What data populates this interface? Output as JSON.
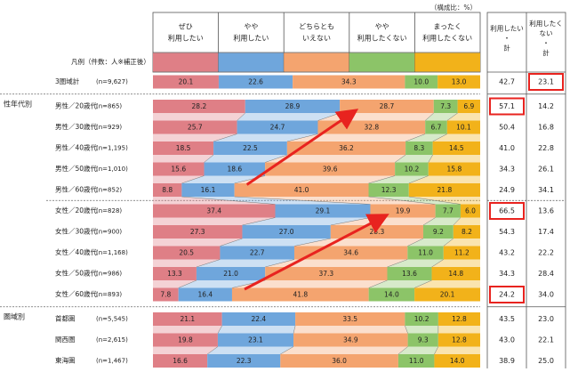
{
  "chart_data": {
    "type": "bar",
    "subtype": "stacked-100-percent-horizontal",
    "unit_note": "（構成比：%）",
    "legend_label": "凡例（件数：人※補正後）",
    "series": [
      {
        "name": "ぜひ\n利用したい",
        "color": "#df7f86"
      },
      {
        "name": "やや\n利用したい",
        "color": "#6fa6dc"
      },
      {
        "name": "どちらとも\nいえない",
        "color": "#f4a46f"
      },
      {
        "name": "やや\n利用したくない",
        "color": "#8cc468"
      },
      {
        "name": "まったく\n利用したくない",
        "color": "#f2b21a"
      }
    ],
    "side_columns": [
      {
        "name": "利用したい\n・\n計"
      },
      {
        "name": "利用したく\nない\n・\n計"
      }
    ],
    "groups": [
      {
        "name": "",
        "rows": [
          {
            "label": "3圏域計",
            "n": "(n=9,627)",
            "values": [
              20.1,
              22.6,
              34.3,
              10.0,
              13.0
            ],
            "labels": [
              "20.1",
              "22.6",
              "34.3",
              "10.0",
              "13.0"
            ],
            "want": "42.7",
            "notwant": "23.1",
            "hl_want": false,
            "hl_notwant": true
          }
        ]
      },
      {
        "name": "性年代別",
        "rows": [
          {
            "label": "男性／20歳代",
            "n": "(n=865)",
            "values": [
              28.2,
              28.9,
              28.7,
              7.3,
              6.9
            ],
            "labels": [
              "28.2",
              "28.9",
              "28.7",
              "7.3",
              "6.9"
            ],
            "want": "57.1",
            "notwant": "14.2",
            "hl_want": true,
            "hl_notwant": false
          },
          {
            "label": "男性／30歳代",
            "n": "(n=929)",
            "values": [
              25.7,
              24.7,
              32.8,
              6.7,
              10.1
            ],
            "labels": [
              "25.7",
              "24.7",
              "32.8",
              "6.7",
              "10.1"
            ],
            "want": "50.4",
            "notwant": "16.8",
            "hl_want": false,
            "hl_notwant": false
          },
          {
            "label": "男性／40歳代",
            "n": "(n=1,195)",
            "values": [
              18.5,
              22.5,
              36.2,
              8.3,
              14.5
            ],
            "labels": [
              "18.5",
              "22.5",
              "36.2",
              "8.3",
              "14.5"
            ],
            "want": "41.0",
            "notwant": "22.8",
            "hl_want": false,
            "hl_notwant": false
          },
          {
            "label": "男性／50歳代",
            "n": "(n=1,010)",
            "values": [
              15.6,
              18.6,
              39.6,
              10.2,
              15.8
            ],
            "labels": [
              "15.6",
              "18.6",
              "39.6",
              "10.2",
              "15.8"
            ],
            "want": "34.3",
            "notwant": "26.1",
            "hl_want": false,
            "hl_notwant": false
          },
          {
            "label": "男性／60歳代",
            "n": "(n=852)",
            "values": [
              8.8,
              16.1,
              41.0,
              12.3,
              21.8
            ],
            "labels": [
              "8.8",
              "16.1",
              "41.0",
              "12.3",
              "21.8"
            ],
            "want": "24.9",
            "notwant": "34.1",
            "hl_want": false,
            "hl_notwant": false
          },
          {
            "label": "女性／20歳代",
            "n": "(n=828)",
            "values": [
              37.4,
              29.1,
              19.9,
              7.7,
              6.0
            ],
            "labels": [
              "37.4",
              "29.1",
              "19.9",
              "7.7",
              "6.0"
            ],
            "want": "66.5",
            "notwant": "13.6",
            "hl_want": true,
            "hl_notwant": false
          },
          {
            "label": "女性／30歳代",
            "n": "(n=900)",
            "values": [
              27.3,
              27.0,
              28.3,
              9.2,
              8.2
            ],
            "labels": [
              "27.3",
              "27.0",
              "28.3",
              "9.2",
              "8.2"
            ],
            "want": "54.3",
            "notwant": "17.4",
            "hl_want": false,
            "hl_notwant": false
          },
          {
            "label": "女性／40歳代",
            "n": "(n=1,168)",
            "values": [
              20.5,
              22.7,
              34.6,
              11.0,
              11.2
            ],
            "labels": [
              "20.5",
              "22.7",
              "34.6",
              "11.0",
              "11.2"
            ],
            "want": "43.2",
            "notwant": "22.2",
            "hl_want": false,
            "hl_notwant": false
          },
          {
            "label": "女性／50歳代",
            "n": "(n=986)",
            "values": [
              13.3,
              21.0,
              37.3,
              13.6,
              14.8
            ],
            "labels": [
              "13.3",
              "21.0",
              "37.3",
              "13.6",
              "14.8"
            ],
            "want": "34.3",
            "notwant": "28.4",
            "hl_want": false,
            "hl_notwant": false
          },
          {
            "label": "女性／60歳代",
            "n": "(n=893)",
            "values": [
              7.8,
              16.4,
              41.8,
              14.0,
              20.1
            ],
            "labels": [
              "7.8",
              "16.4",
              "41.8",
              "14.0",
              "20.1"
            ],
            "want": "24.2",
            "notwant": "34.0",
            "hl_want": true,
            "hl_notwant": false
          }
        ]
      },
      {
        "name": "圏域別",
        "rows": [
          {
            "label": "首都圏",
            "n": "(n=5,545)",
            "values": [
              21.1,
              22.4,
              33.5,
              10.2,
              12.8
            ],
            "labels": [
              "21.1",
              "22.4",
              "33.5",
              "10.2",
              "12.8"
            ],
            "want": "43.5",
            "notwant": "23.0",
            "hl_want": false,
            "hl_notwant": false
          },
          {
            "label": "関西圏",
            "n": "(n=2,615)",
            "values": [
              19.8,
              23.1,
              34.9,
              9.3,
              12.8
            ],
            "labels": [
              "19.8",
              "23.1",
              "34.9",
              "9.3",
              "12.8"
            ],
            "want": "43.0",
            "notwant": "22.1",
            "hl_want": false,
            "hl_notwant": false
          },
          {
            "label": "東海圏",
            "n": "(n=1,467)",
            "values": [
              16.6,
              22.3,
              36.0,
              11.0,
              14.0
            ],
            "labels": [
              "16.6",
              "22.3",
              "36.0",
              "11.0",
              "14.0"
            ],
            "want": "38.9",
            "notwant": "25.0",
            "hl_want": false,
            "hl_notwant": false
          }
        ]
      }
    ],
    "arrow_color": "#e8231f",
    "highlight_color": "#e8231f"
  }
}
